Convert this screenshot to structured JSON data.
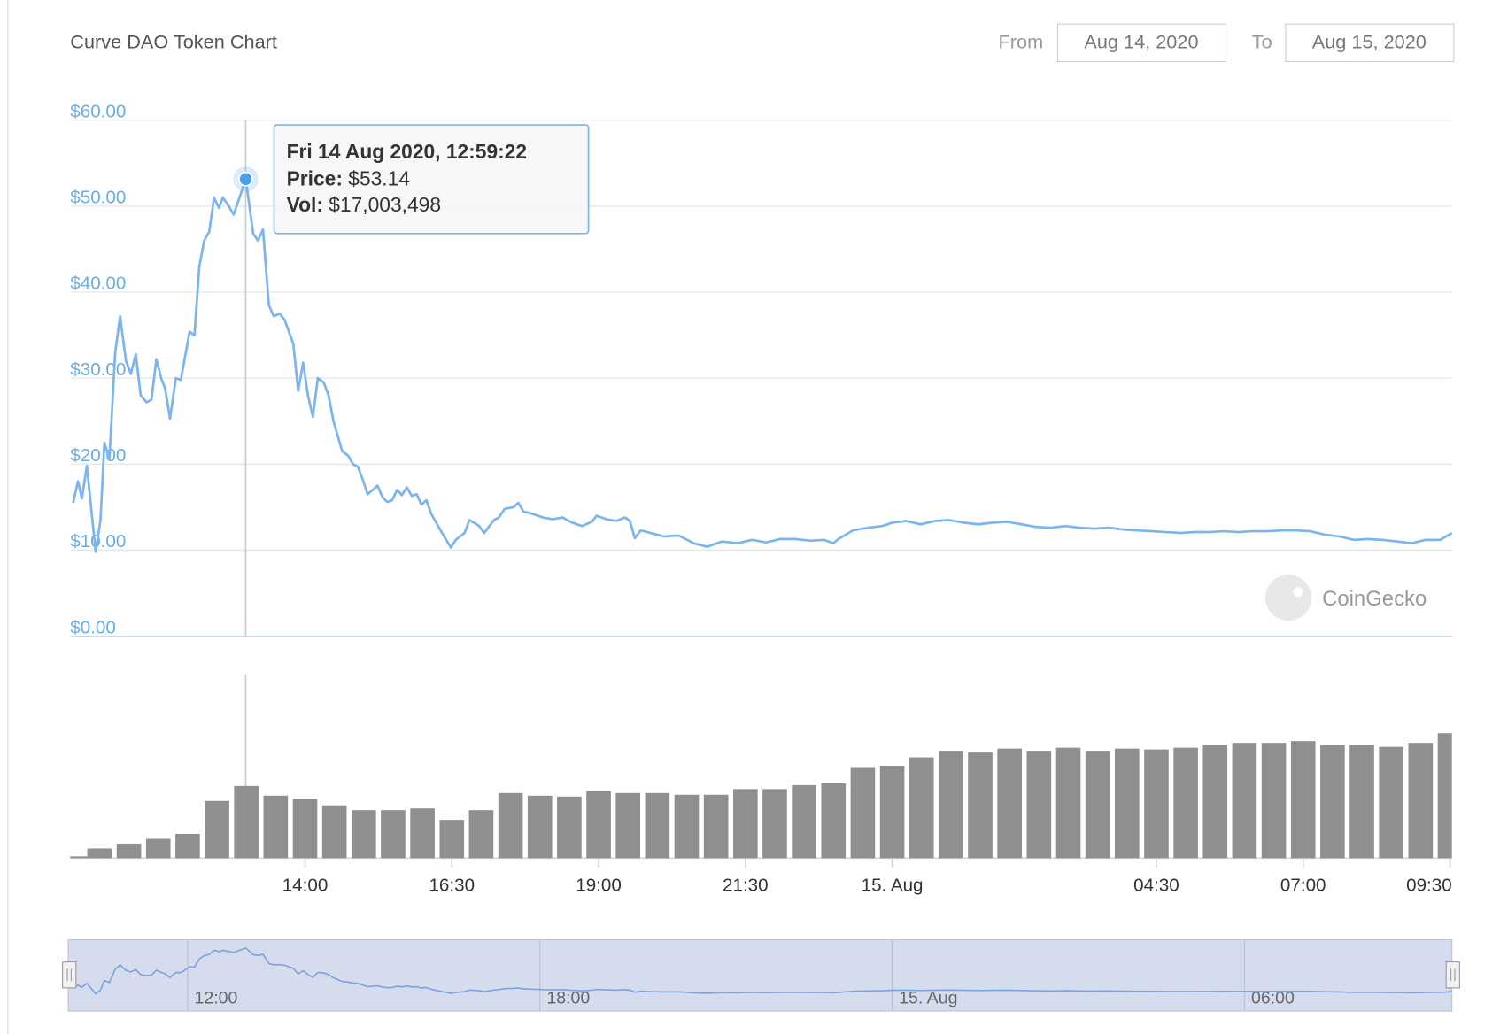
{
  "chart_data": [
    {
      "type": "line",
      "title": "Curve DAO Token Chart",
      "color": "#7cb5ec",
      "grid": true,
      "ylim": [
        0,
        60
      ],
      "yticks": [
        {
          "value": 0,
          "label": "$0.00"
        },
        {
          "value": 10,
          "label": "$10.00"
        },
        {
          "value": 20,
          "label": "$20.00"
        },
        {
          "value": 30,
          "label": "$30.00"
        },
        {
          "value": 40,
          "label": "$40.00"
        },
        {
          "value": 50,
          "label": "$50.00"
        },
        {
          "value": 60,
          "label": "$60.00"
        }
      ],
      "x": [
        "2020-08-14T10:03",
        "2020-08-14T10:08",
        "2020-08-14T10:12",
        "2020-08-14T10:17",
        "2020-08-14T10:26",
        "2020-08-14T10:31",
        "2020-08-14T10:35",
        "2020-08-14T10:40",
        "2020-08-14T10:46",
        "2020-08-14T10:51",
        "2020-08-14T10:57",
        "2020-08-14T11:02",
        "2020-08-14T11:07",
        "2020-08-14T11:12",
        "2020-08-14T11:18",
        "2020-08-14T11:23",
        "2020-08-14T11:28",
        "2020-08-14T11:33",
        "2020-08-14T11:37",
        "2020-08-14T11:42",
        "2020-08-14T11:48",
        "2020-08-14T11:53",
        "2020-08-14T12:02",
        "2020-08-14T12:07",
        "2020-08-14T12:12",
        "2020-08-14T12:17",
        "2020-08-14T12:22",
        "2020-08-14T12:27",
        "2020-08-14T12:32",
        "2020-08-14T12:36",
        "2020-08-14T12:42",
        "2020-08-14T12:47",
        "2020-08-14T12:59:22",
        "2020-08-14T13:02",
        "2020-08-14T13:07",
        "2020-08-14T13:12",
        "2020-08-14T13:17",
        "2020-08-14T13:23",
        "2020-08-14T13:28",
        "2020-08-14T13:34",
        "2020-08-14T13:39",
        "2020-08-14T13:48",
        "2020-08-14T13:53",
        "2020-08-14T13:58",
        "2020-08-14T14:03",
        "2020-08-14T14:08",
        "2020-08-14T14:13",
        "2020-08-14T14:19",
        "2020-08-14T14:24",
        "2020-08-14T14:29",
        "2020-08-14T14:38",
        "2020-08-14T14:44",
        "2020-08-14T14:49",
        "2020-08-14T14:54",
        "2020-08-14T14:58",
        "2020-08-14T15:04",
        "2020-08-14T15:09",
        "2020-08-14T15:14",
        "2020-08-14T15:19",
        "2020-08-14T15:24",
        "2020-08-14T15:29",
        "2020-08-14T15:34",
        "2020-08-14T15:39",
        "2020-08-14T15:44",
        "2020-08-14T15:49",
        "2020-08-14T15:54",
        "2020-08-14T15:59",
        "2020-08-14T16:04",
        "2020-08-14T16:09",
        "2020-08-14T16:19",
        "2020-08-14T16:29",
        "2020-08-14T16:34",
        "2020-08-14T16:43",
        "2020-08-14T16:48",
        "2020-08-14T16:58",
        "2020-08-14T17:03",
        "2020-08-14T17:13",
        "2020-08-14T17:18",
        "2020-08-14T17:24",
        "2020-08-14T17:33",
        "2020-08-14T17:38",
        "2020-08-14T17:43",
        "2020-08-14T17:53",
        "2020-08-14T18:03",
        "2020-08-14T18:13",
        "2020-08-14T18:23",
        "2020-08-14T18:33",
        "2020-08-14T18:43",
        "2020-08-14T18:53",
        "2020-08-14T18:58",
        "2020-08-14T19:08",
        "2020-08-14T19:18",
        "2020-08-14T19:27",
        "2020-08-14T19:32",
        "2020-08-14T19:37",
        "2020-08-14T19:43",
        "2020-08-14T19:53",
        "2020-08-14T20:07",
        "2020-08-14T20:22",
        "2020-08-14T20:37",
        "2020-08-14T20:51",
        "2020-08-14T21:06",
        "2020-08-14T21:22",
        "2020-08-14T21:37",
        "2020-08-14T21:51",
        "2020-08-14T22:06",
        "2020-08-14T22:21",
        "2020-08-14T22:36",
        "2020-08-14T22:50",
        "2020-08-14T23:00",
        "2020-08-14T23:05",
        "2020-08-14T23:20",
        "2020-08-14T23:35",
        "2020-08-14T23:50",
        "2020-08-15T00:00",
        "2020-08-15T00:14",
        "2020-08-15T00:29",
        "2020-08-15T00:44",
        "2020-08-15T00:58",
        "2020-08-15T01:13",
        "2020-08-15T01:28",
        "2020-08-15T01:43",
        "2020-08-15T01:58",
        "2020-08-15T02:12",
        "2020-08-15T02:27",
        "2020-08-15T02:42",
        "2020-08-15T02:57",
        "2020-08-15T03:11",
        "2020-08-15T03:26",
        "2020-08-15T03:41",
        "2020-08-15T03:56",
        "2020-08-15T04:10",
        "2020-08-15T04:25",
        "2020-08-15T04:40",
        "2020-08-15T04:55",
        "2020-08-15T05:09",
        "2020-08-15T05:24",
        "2020-08-15T05:39",
        "2020-08-15T05:54",
        "2020-08-15T06:08",
        "2020-08-15T06:23",
        "2020-08-15T06:38",
        "2020-08-15T06:53",
        "2020-08-15T07:07",
        "2020-08-15T07:22",
        "2020-08-15T07:37",
        "2020-08-15T07:52",
        "2020-08-15T08:06",
        "2020-08-15T08:21",
        "2020-08-15T08:36",
        "2020-08-15T08:51",
        "2020-08-15T09:05",
        "2020-08-15T09:20",
        "2020-08-15T09:32"
      ],
      "values": [
        15.5,
        18,
        16,
        19.8,
        9.8,
        13.5,
        22.5,
        20.5,
        33,
        37.2,
        32,
        30.5,
        32.8,
        28,
        27.2,
        27.5,
        32.2,
        30,
        28.8,
        25.3,
        30,
        29.8,
        35.4,
        35,
        43,
        46,
        47,
        51,
        49.8,
        51,
        50,
        49,
        53.14,
        51,
        46.8,
        46,
        47.3,
        38.5,
        37.2,
        37.5,
        36.8,
        34,
        28.5,
        31.8,
        28,
        25.5,
        30,
        29.5,
        28,
        25,
        21.5,
        21,
        20,
        19.7,
        18.5,
        16.5,
        17,
        17.5,
        16.2,
        15.6,
        15.8,
        17,
        16.4,
        17.3,
        16.3,
        16.5,
        15.3,
        15.8,
        14.2,
        12.2,
        10.3,
        11.2,
        12,
        13.5,
        12.8,
        12,
        13.5,
        13.8,
        14.8,
        15,
        15.5,
        14.5,
        14.2,
        13.8,
        13.6,
        13.8,
        13.2,
        12.8,
        13.3,
        14,
        13.6,
        13.4,
        13.8,
        13.4,
        11.4,
        12.3,
        12,
        11.6,
        11.7,
        10.8,
        10.4,
        11,
        10.8,
        11.2,
        10.9,
        11.3,
        11.3,
        11.1,
        11.2,
        10.8,
        11.3,
        12.3,
        12.6,
        12.8,
        13.2,
        13.4,
        13,
        13.4,
        13.5,
        13.2,
        13,
        13.2,
        13.3,
        13,
        12.7,
        12.6,
        12.8,
        12.6,
        12.5,
        12.6,
        12.4,
        12.3,
        12.2,
        12.1,
        12,
        12.1,
        12.1,
        12.2,
        12.1,
        12.2,
        12.2,
        12.3,
        12.3,
        12.2,
        11.8,
        11.6,
        11.2,
        11.3,
        11.2,
        11,
        10.8,
        11.2,
        11.2,
        12
      ]
    },
    {
      "type": "bar",
      "color": "#8f8f8f",
      "xlim": [
        "2020-08-14T10:00",
        "2020-08-15T09:32"
      ],
      "xticks": [
        {
          "value": "2020-08-14T14:00",
          "label": "14:00"
        },
        {
          "value": "2020-08-14T16:30",
          "label": "16:30"
        },
        {
          "value": "2020-08-14T19:00",
          "label": "19:00"
        },
        {
          "value": "2020-08-14T21:30",
          "label": "21:30"
        },
        {
          "value": "2020-08-15T00:00",
          "label": "15. Aug"
        },
        {
          "value": "2020-08-15T04:30",
          "label": "04:30"
        },
        {
          "value": "2020-08-15T07:00",
          "label": "07:00"
        },
        {
          "value": "2020-08-15T09:30",
          "label": "09:30"
        }
      ],
      "x": [
        "2020-08-14T10:00",
        "2020-08-14T10:30",
        "2020-08-14T11:00",
        "2020-08-14T11:30",
        "2020-08-14T12:00",
        "2020-08-14T12:30",
        "2020-08-14T13:00",
        "2020-08-14T13:30",
        "2020-08-14T14:00",
        "2020-08-14T14:30",
        "2020-08-14T15:00",
        "2020-08-14T15:30",
        "2020-08-14T16:00",
        "2020-08-14T16:30",
        "2020-08-14T17:00",
        "2020-08-14T17:30",
        "2020-08-14T18:00",
        "2020-08-14T18:30",
        "2020-08-14T19:00",
        "2020-08-14T19:30",
        "2020-08-14T20:00",
        "2020-08-14T20:30",
        "2020-08-14T21:00",
        "2020-08-14T21:30",
        "2020-08-14T22:00",
        "2020-08-14T22:30",
        "2020-08-14T23:00",
        "2020-08-14T23:30",
        "2020-08-15T00:00",
        "2020-08-15T00:30",
        "2020-08-15T01:00",
        "2020-08-15T01:30",
        "2020-08-15T02:00",
        "2020-08-15T02:30",
        "2020-08-15T03:00",
        "2020-08-15T03:30",
        "2020-08-15T04:00",
        "2020-08-15T04:30",
        "2020-08-15T05:00",
        "2020-08-15T05:30",
        "2020-08-15T06:00",
        "2020-08-15T06:30",
        "2020-08-15T07:00",
        "2020-08-15T07:30",
        "2020-08-15T08:00",
        "2020-08-15T08:30",
        "2020-08-15T09:00",
        "2020-08-15T09:30"
      ],
      "values": [
        400000,
        2200000,
        3300000,
        4400000,
        5500000,
        13000000,
        16400000,
        14200000,
        13500000,
        12000000,
        10900000,
        10900000,
        11300000,
        8700000,
        10900000,
        14800000,
        14200000,
        14000000,
        15300000,
        14800000,
        14800000,
        14400000,
        14400000,
        15700000,
        15700000,
        16600000,
        17000000,
        20700000,
        21000000,
        22900000,
        24400000,
        24000000,
        24900000,
        24400000,
        25100000,
        24400000,
        24900000,
        24700000,
        25100000,
        25700000,
        26200000,
        26200000,
        26600000,
        25700000,
        25700000,
        25300000,
        26200000,
        28400000
      ]
    },
    {
      "type": "navigator",
      "xticks": [
        {
          "value": "2020-08-14T12:00",
          "label": "12:00"
        },
        {
          "value": "2020-08-14T18:00",
          "label": "18:00"
        },
        {
          "value": "2020-08-15T00:00",
          "label": "15. Aug"
        },
        {
          "value": "2020-08-15T06:00",
          "label": "06:00"
        }
      ]
    }
  ],
  "range": {
    "from_label": "From",
    "from": "Aug 14, 2020",
    "to_label": "To",
    "to": "Aug 15, 2020"
  },
  "tooltip": {
    "date": "Fri 14 Aug 2020, 12:59:22",
    "price_label": "Price:",
    "price": "$53.14",
    "vol_label": "Vol:",
    "vol": "$17,003,498"
  },
  "watermark": "CoinGecko"
}
